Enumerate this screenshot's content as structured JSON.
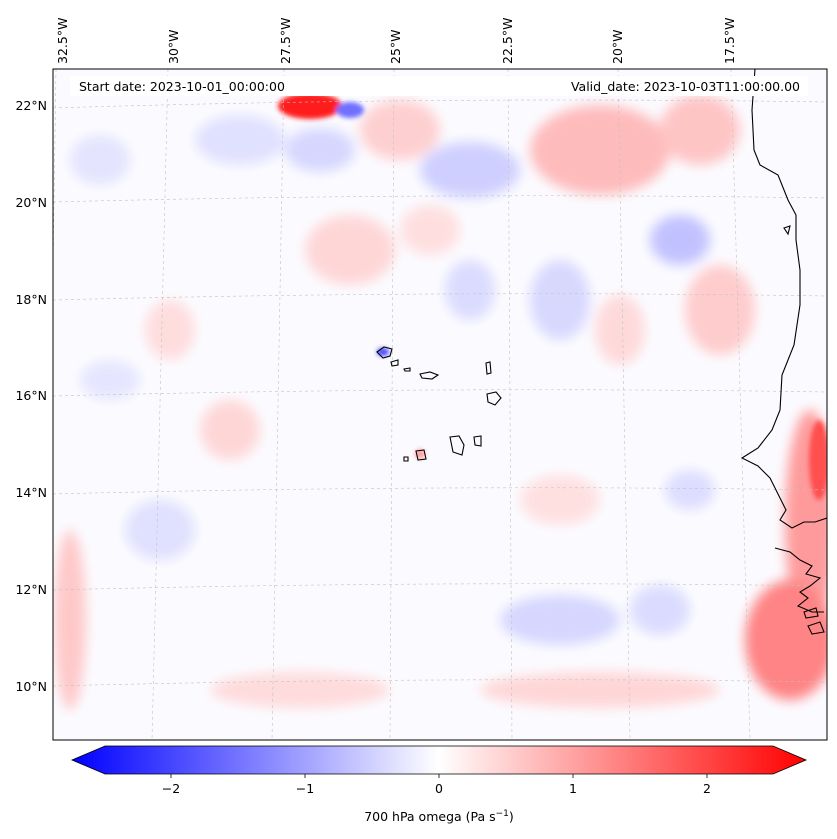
{
  "header": {
    "start_date": "Start date: 2023-10-01_00:00:00",
    "valid_date": "Valid_date: 2023-10-03T11:00:00.00"
  },
  "axes": {
    "lon_ticks": [
      "32.5°W",
      "30°W",
      "27.5°W",
      "25°W",
      "22.5°W",
      "20°W",
      "17.5°W"
    ],
    "lat_ticks": [
      "22°N",
      "20°N",
      "18°N",
      "16°N",
      "14°N",
      "12°N",
      "10°N"
    ]
  },
  "colorbar": {
    "ticks": [
      "−2",
      "−1",
      "0",
      "1",
      "2"
    ],
    "label": "700 hPa omega (Pa s",
    "label_sup": "−1",
    "label_close": ")",
    "colors": {
      "negative": "#0000ff",
      "zero": "#ffffff",
      "positive": "#ff0000"
    },
    "range": [
      -2.6,
      2.6
    ]
  },
  "map": {
    "colormap": "bwr",
    "gridlines": true,
    "coastline_color": "#000000",
    "gridline_color": "#bdbdbd"
  }
}
